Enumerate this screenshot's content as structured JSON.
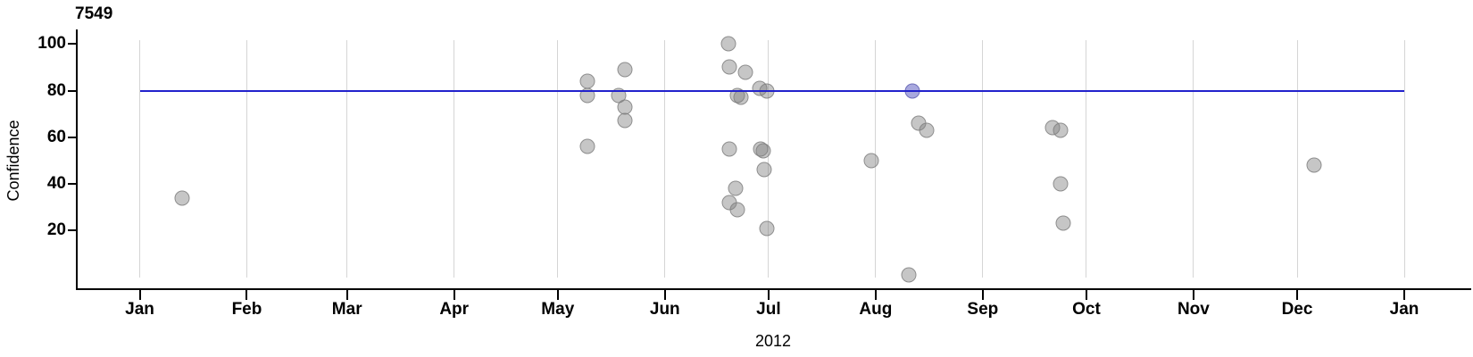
{
  "chart_data": {
    "type": "scatter",
    "title": "7549",
    "xlabel": "2012",
    "ylabel": "Confidence",
    "ylim": [
      0,
      100
    ],
    "y_ticks": [
      20,
      40,
      60,
      80,
      100
    ],
    "x_tick_labels": [
      "Jan",
      "Feb",
      "Mar",
      "Apr",
      "May",
      "Jun",
      "Jul",
      "Aug",
      "Sep",
      "Oct",
      "Nov",
      "Dec",
      "Jan"
    ],
    "month_start_days": [
      0,
      31,
      60,
      91,
      121,
      152,
      182,
      213,
      244,
      274,
      305,
      335,
      366
    ],
    "grid": "vertical gridline at each month, no horizontal gridlines",
    "legend": "none",
    "reference_line": {
      "value": 80,
      "orientation": "horizontal",
      "color": "#2222cc"
    },
    "colors": {
      "grid": "#d5d5d5",
      "axis": "#000000",
      "point_fill": "rgba(128,128,128,0.45)",
      "point_border": "rgba(128,128,128,0.8)",
      "highlight_fill": "rgba(110,110,200,0.6)",
      "highlight_border": "rgba(100,100,180,0.85)"
    },
    "points": [
      {
        "date": "Jan 13",
        "day_of_year": 12.3,
        "value": 34
      },
      {
        "date": "May 9",
        "day_of_year": 129.5,
        "value": 84
      },
      {
        "date": "May 9",
        "day_of_year": 129.5,
        "value": 78
      },
      {
        "date": "May 9",
        "day_of_year": 129.5,
        "value": 56
      },
      {
        "date": "May 18",
        "day_of_year": 138.6,
        "value": 78
      },
      {
        "date": "May 20",
        "day_of_year": 140.5,
        "value": 89
      },
      {
        "date": "May 20",
        "day_of_year": 140.5,
        "value": 73
      },
      {
        "date": "May 20",
        "day_of_year": 140.5,
        "value": 67
      },
      {
        "date": "Jun 18",
        "day_of_year": 170.4,
        "value": 100
      },
      {
        "date": "Jun 18",
        "day_of_year": 170.7,
        "value": 90
      },
      {
        "date": "Jun 23",
        "day_of_year": 175.3,
        "value": 88
      },
      {
        "date": "Jun 21",
        "day_of_year": 173.1,
        "value": 78
      },
      {
        "date": "Jun 22",
        "day_of_year": 174.0,
        "value": 77
      },
      {
        "date": "Jun 27",
        "day_of_year": 179.5,
        "value": 81
      },
      {
        "date": "Jun 29",
        "day_of_year": 181.4,
        "value": 80
      },
      {
        "date": "Jun 18",
        "day_of_year": 170.7,
        "value": 55
      },
      {
        "date": "Jun 27",
        "day_of_year": 179.7,
        "value": 55
      },
      {
        "date": "Jun 28",
        "day_of_year": 180.5,
        "value": 54
      },
      {
        "date": "Jun 28",
        "day_of_year": 180.7,
        "value": 46
      },
      {
        "date": "Jun 20",
        "day_of_year": 172.5,
        "value": 38
      },
      {
        "date": "Jun 18",
        "day_of_year": 170.7,
        "value": 32
      },
      {
        "date": "Jun 21",
        "day_of_year": 173.0,
        "value": 29
      },
      {
        "date": "Jun 29",
        "day_of_year": 181.5,
        "value": 21
      },
      {
        "date": "Jul 30",
        "day_of_year": 211.7,
        "value": 50
      },
      {
        "date": "Aug 11",
        "day_of_year": 223.6,
        "value": 80,
        "highlight": true
      },
      {
        "date": "Aug 13",
        "day_of_year": 225.5,
        "value": 66
      },
      {
        "date": "Aug 15",
        "day_of_year": 227.7,
        "value": 63
      },
      {
        "date": "Aug 10",
        "day_of_year": 222.7,
        "value": 1
      },
      {
        "date": "Sep 20",
        "day_of_year": 264.2,
        "value": 64
      },
      {
        "date": "Sep 23",
        "day_of_year": 266.5,
        "value": 63
      },
      {
        "date": "Sep 23",
        "day_of_year": 266.4,
        "value": 40
      },
      {
        "date": "Sep 24",
        "day_of_year": 267.2,
        "value": 23
      },
      {
        "date": "Dec 5",
        "day_of_year": 339.8,
        "value": 48
      }
    ]
  }
}
